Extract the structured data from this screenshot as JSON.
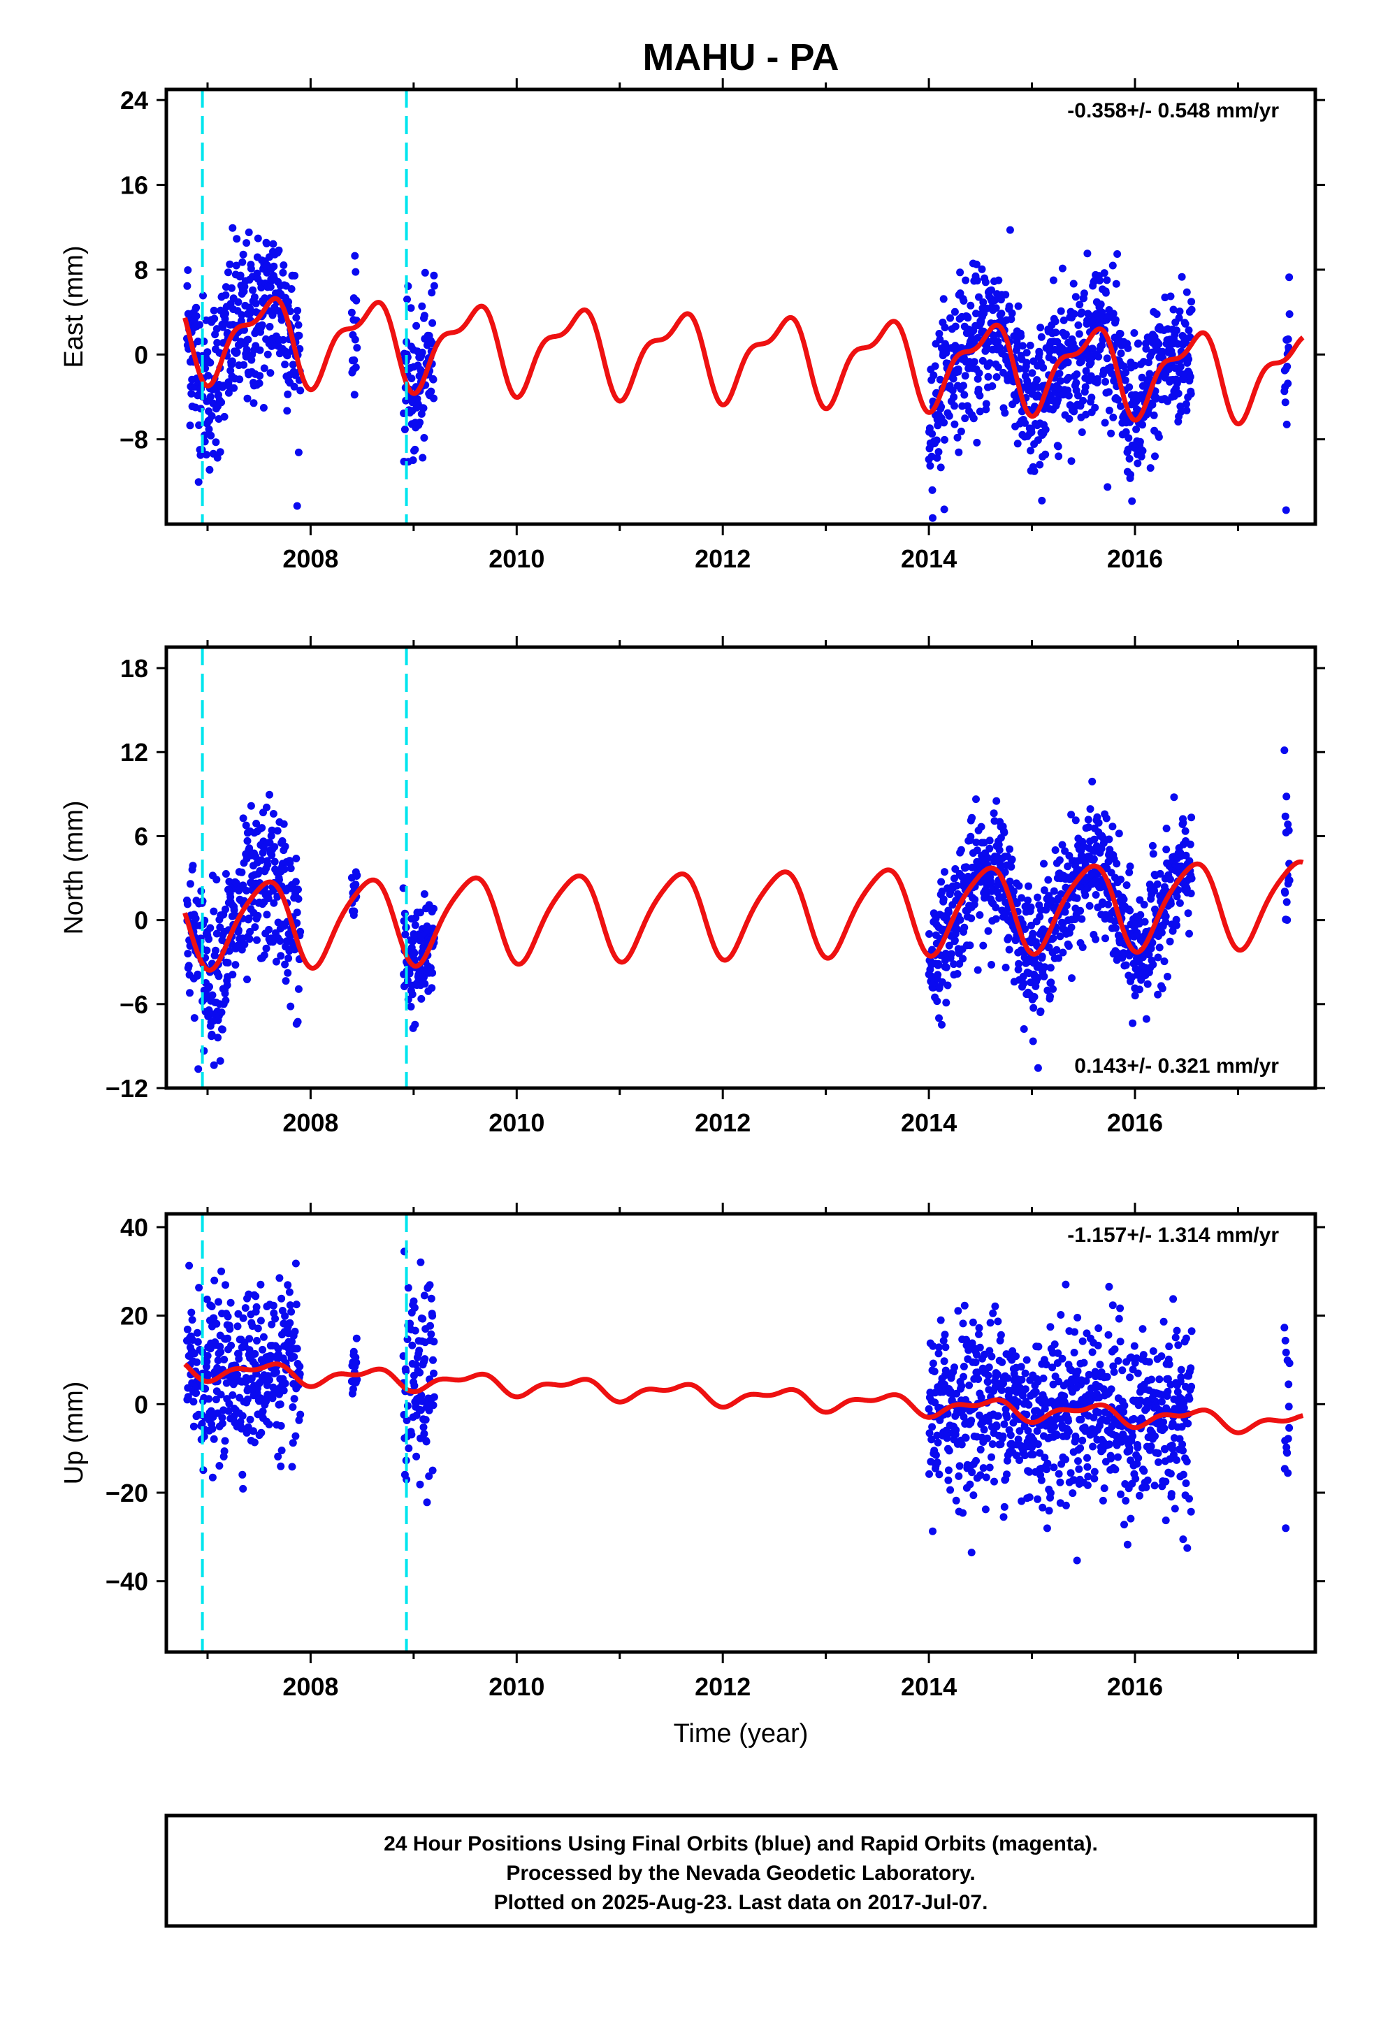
{
  "title": "MAHU - PA",
  "footer": {
    "line1": "24 Hour Positions Using Final Orbits (blue) and Rapid Orbits (magenta).",
    "line2": "Processed by the Nevada Geodetic Laboratory.",
    "line3": "Plotted on 2025-Aug-23. Last data on 2017-Jul-07."
  },
  "colors": {
    "final_orbits": "#0a0af0",
    "model": "#ee1111",
    "offsets": "#00e5ee"
  },
  "chart_data": [
    {
      "type": "scatter",
      "component": "East",
      "ylabel": "East (mm)",
      "xlabel": "",
      "xlim": [
        2006.6,
        2017.75
      ],
      "ylim": [
        -16,
        25
      ],
      "yticks": [
        24,
        16,
        8,
        0,
        -8
      ],
      "xticks": [
        2008,
        2010,
        2012,
        2014,
        2016
      ],
      "rate_label": "-0.358+/- 0.548 mm/yr",
      "rate_position": "top-right",
      "offsets": [
        2006.95,
        2008.93
      ],
      "model": {
        "mean": 0.0,
        "trend": -0.358,
        "amp": 3.5,
        "extra": 1.5
      },
      "data_segments": [
        {
          "start": 2006.8,
          "end": 2007.9,
          "scatter": 4.0
        },
        {
          "start": 2008.4,
          "end": 2008.45,
          "scatter": 3.0
        },
        {
          "start": 2008.9,
          "end": 2009.2,
          "scatter": 3.5
        },
        {
          "start": 2014.0,
          "end": 2016.55,
          "scatter": 3.5
        },
        {
          "start": 2017.45,
          "end": 2017.5,
          "scatter": 5.0
        }
      ]
    },
    {
      "type": "scatter",
      "component": "North",
      "ylabel": "North (mm)",
      "xlabel": "",
      "xlim": [
        2006.6,
        2017.75
      ],
      "ylim": [
        -12,
        19.5
      ],
      "yticks": [
        18,
        12,
        6,
        0,
        -6,
        -12
      ],
      "xticks": [
        2008,
        2010,
        2012,
        2014,
        2016
      ],
      "rate_label": "0.143+/- 0.321 mm/yr",
      "rate_position": "bottom-right",
      "offsets": [
        2006.95,
        2008.93
      ],
      "model": {
        "mean": 0.5,
        "trend": 0.143,
        "amp": 3.0,
        "extra": 0.5
      },
      "data_segments": [
        {
          "start": 2006.8,
          "end": 2007.9,
          "scatter": 2.8
        },
        {
          "start": 2008.4,
          "end": 2008.45,
          "scatter": 1.5
        },
        {
          "start": 2008.9,
          "end": 2009.2,
          "scatter": 2.0
        },
        {
          "start": 2014.0,
          "end": 2016.55,
          "scatter": 2.2
        },
        {
          "start": 2017.45,
          "end": 2017.5,
          "scatter": 3.0
        }
      ]
    },
    {
      "type": "scatter",
      "component": "Up",
      "ylabel": "Up (mm)",
      "xlabel": "Time (year)",
      "xlim": [
        2006.6,
        2017.75
      ],
      "ylim": [
        -56,
        43
      ],
      "yticks": [
        40,
        20,
        0,
        -20,
        -40
      ],
      "xticks": [
        2008,
        2010,
        2012,
        2014,
        2016
      ],
      "rate_label": "-1.157+/- 1.314 mm/yr",
      "rate_position": "top-right",
      "offsets": [
        2006.95,
        2008.93
      ],
      "model": {
        "mean": 2.0,
        "trend": -1.157,
        "amp": 1.8,
        "extra": 1.0
      },
      "data_segments": [
        {
          "start": 2006.8,
          "end": 2007.9,
          "scatter": 9.0
        },
        {
          "start": 2008.4,
          "end": 2008.45,
          "scatter": 4.0
        },
        {
          "start": 2008.9,
          "end": 2009.2,
          "scatter": 11.0
        },
        {
          "start": 2014.0,
          "end": 2016.55,
          "scatter": 10.0
        },
        {
          "start": 2017.45,
          "end": 2017.5,
          "scatter": 10.0
        }
      ]
    }
  ]
}
